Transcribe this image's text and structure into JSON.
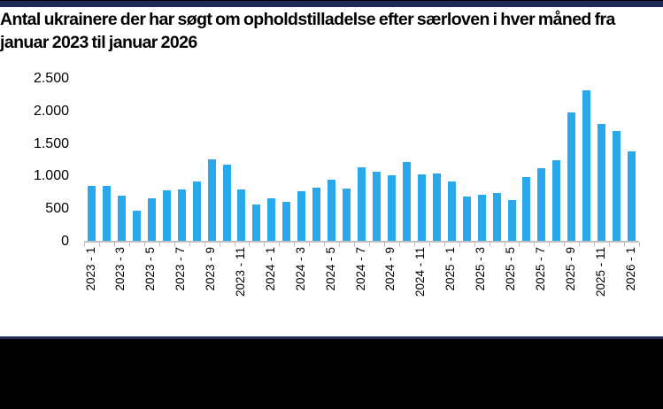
{
  "colors": {
    "bar": "#29A9E9",
    "navy_border": "#1F2A5B",
    "axis_gray": "#BFBFBF",
    "footer_black": "#000000",
    "text": "#000000"
  },
  "chart_data": {
    "type": "bar",
    "title": "Antal ukrainere der har søgt om opholdstilladelse efter særloven i hver måned fra januar 2023 til januar 2026",
    "xlabel": "",
    "ylabel": "",
    "ylim": [
      0,
      2500
    ],
    "grid": false,
    "legend": "none",
    "categories": [
      "2023-1",
      "2023-2",
      "2023-3",
      "2023-4",
      "2023-5",
      "2023-6",
      "2023-7",
      "2023-8",
      "2023-9",
      "2023-10",
      "2023-11",
      "2023-12",
      "2024-1",
      "2024-2",
      "2024-3",
      "2024-4",
      "2024-5",
      "2024-6",
      "2024-7",
      "2024-8",
      "2024-9",
      "2024-10",
      "2024-11",
      "2024-12",
      "2025-1",
      "2025-2",
      "2025-3",
      "2025-4",
      "2025-5",
      "2025-6",
      "2025-7",
      "2025-8",
      "2025-9",
      "2025-10",
      "2025-11",
      "2025-12",
      "2026-1"
    ],
    "values": [
      860,
      860,
      710,
      470,
      670,
      790,
      800,
      930,
      1260,
      1180,
      800,
      570,
      660,
      610,
      770,
      830,
      950,
      810,
      1140,
      1070,
      1020,
      1230,
      1030,
      1050,
      930,
      690,
      715,
      745,
      640,
      990,
      1130,
      1250,
      1980,
      2330,
      1810,
      1700,
      1390
    ],
    "xtick_labels": [
      "2023 - 1",
      "2023 - 3",
      "2023 - 5",
      "2023 - 7",
      "2023 - 9",
      "2023 - 11",
      "2024 - 1",
      "2024 - 3",
      "2024 - 5",
      "2024 - 7",
      "2024 - 9",
      "2024 - 11",
      "2025 - 1",
      "2025 - 3",
      "2025 - 5",
      "2025 - 7",
      "2025 - 9",
      "2025 - 11",
      "2026 - 1"
    ],
    "xtick_every": 2,
    "yticks": [
      {
        "label": "0",
        "value": 0
      },
      {
        "label": "500",
        "value": 500
      },
      {
        "label": "1.000",
        "value": 1000
      },
      {
        "label": "1.500",
        "value": 1500
      },
      {
        "label": "2.000",
        "value": 2000
      },
      {
        "label": "2.500",
        "value": 2500
      }
    ]
  }
}
